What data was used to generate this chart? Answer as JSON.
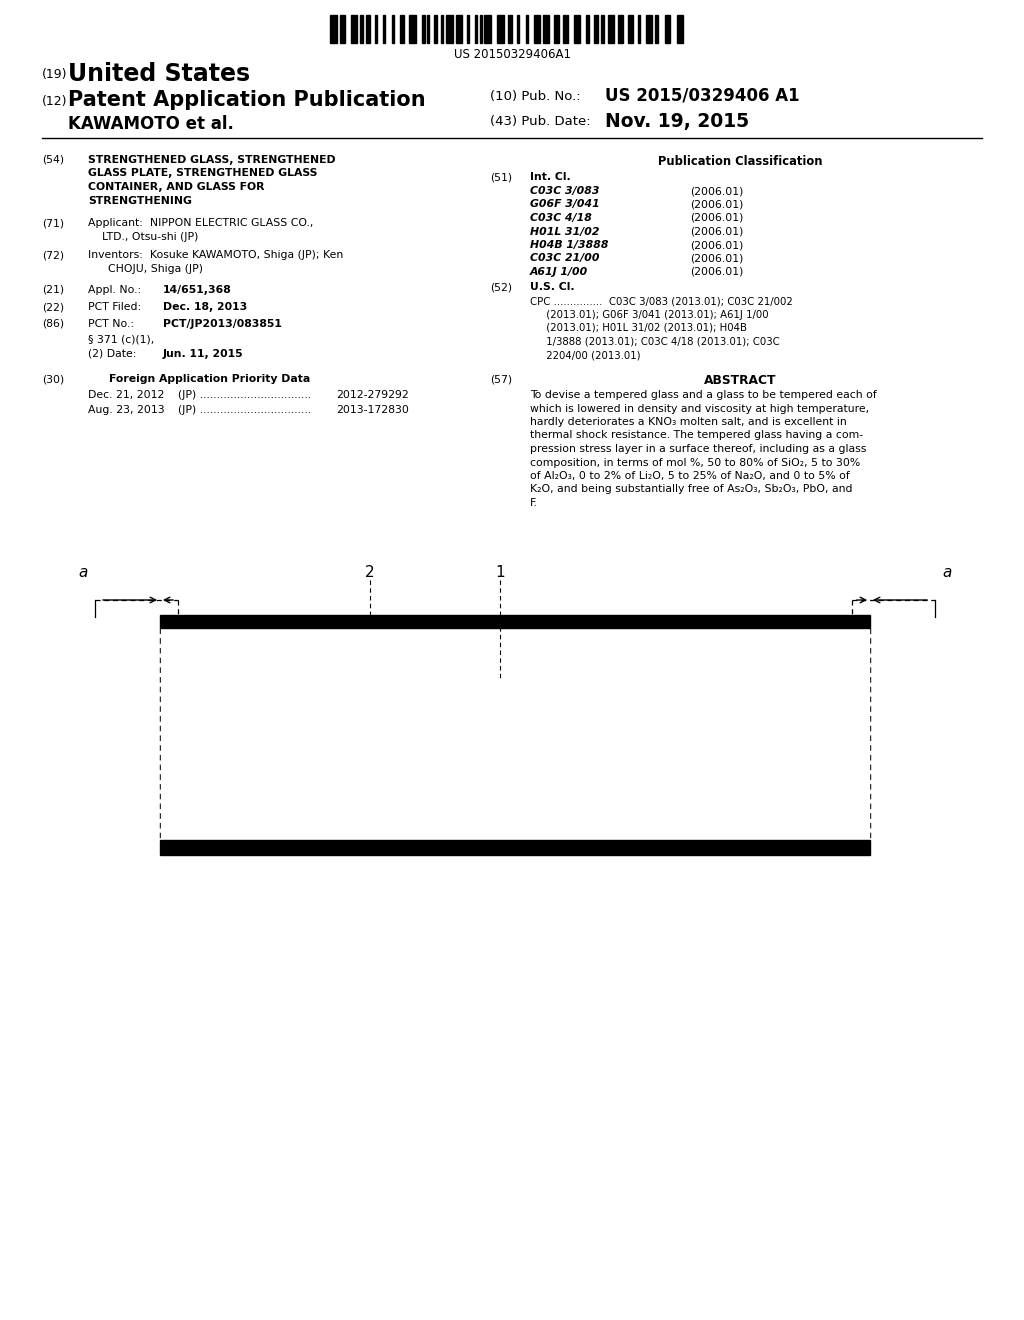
{
  "background_color": "#ffffff",
  "barcode_text": "US 20150329406A1",
  "title_19": "(19)",
  "title_country": "United States",
  "title_12": "(12)",
  "title_type": "Patent Application Publication",
  "title_inventor": "KAWAMOTO et al.",
  "pub_no_label": "(10) Pub. No.:",
  "pub_no_value": "US 2015/0329406 A1",
  "pub_date_label": "(43) Pub. Date:",
  "pub_date_value": "Nov. 19, 2015",
  "field_54_label": "(54)",
  "field_71_label": "(71)",
  "field_72_label": "(72)",
  "field_21_label": "(21)",
  "field_22_label": "(22)",
  "field_86_label": "(86)",
  "field_30_label": "(30)",
  "field_51_label": "(51)",
  "field_52_label": "(52)",
  "field_57_label": "(57)",
  "pub_class_title": "Publication Classification",
  "field_51_text": "Int. Cl.",
  "field_52_text": "U.S. Cl.",
  "field_57_title": "ABSTRACT",
  "field_30_title": "Foreign Application Priority Data",
  "int_cl_entries": [
    [
      "C03C 3/083",
      "(2006.01)"
    ],
    [
      "G06F 3/041",
      "(2006.01)"
    ],
    [
      "C03C 4/18",
      "(2006.01)"
    ],
    [
      "H01L 31/02",
      "(2006.01)"
    ],
    [
      "H04B 1/3888",
      "(2006.01)"
    ],
    [
      "C03C 21/00",
      "(2006.01)"
    ],
    [
      "A61J 1/00",
      "(2006.01)"
    ]
  ],
  "diagram_label_a1": "a",
  "diagram_label_a2": "a",
  "diagram_label_2": "2",
  "diagram_label_1": "1"
}
